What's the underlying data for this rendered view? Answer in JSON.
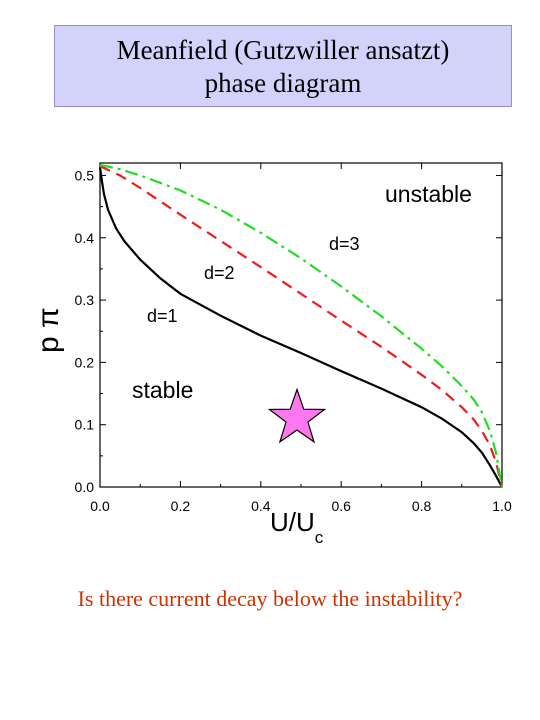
{
  "title": {
    "line1": "Meanfield (Gutzwiller ansatzt)",
    "line2": "phase diagram"
  },
  "question": "Is there current decay below the instability?",
  "chart_data": {
    "type": "line",
    "xlabel_main": "U/U",
    "xlabel_sub": "c",
    "ylabel": "p π",
    "xlim": [
      0,
      1
    ],
    "ylim": [
      0,
      0.52
    ],
    "x_ticks": [
      "0.0",
      "0.2",
      "0.4",
      "0.6",
      "0.8",
      "1.0"
    ],
    "y_ticks": [
      "0.0",
      "0.1",
      "0.2",
      "0.3",
      "0.4",
      "0.5"
    ],
    "annotations": {
      "unstable": "unstable",
      "stable": "stable",
      "d1": "d=1",
      "d2": "d=2",
      "d3": "d=3"
    },
    "series": [
      {
        "name": "d=1",
        "color": "#000000",
        "style": "solid",
        "points": [
          [
            0.0,
            0.513
          ],
          [
            0.005,
            0.49
          ],
          [
            0.01,
            0.47
          ],
          [
            0.02,
            0.445
          ],
          [
            0.04,
            0.415
          ],
          [
            0.06,
            0.395
          ],
          [
            0.1,
            0.365
          ],
          [
            0.15,
            0.335
          ],
          [
            0.2,
            0.31
          ],
          [
            0.3,
            0.275
          ],
          [
            0.4,
            0.243
          ],
          [
            0.5,
            0.215
          ],
          [
            0.6,
            0.186
          ],
          [
            0.7,
            0.158
          ],
          [
            0.8,
            0.128
          ],
          [
            0.85,
            0.11
          ],
          [
            0.9,
            0.088
          ],
          [
            0.93,
            0.07
          ],
          [
            0.95,
            0.055
          ],
          [
            0.97,
            0.035
          ],
          [
            0.985,
            0.018
          ],
          [
            1.0,
            0.0
          ]
        ]
      },
      {
        "name": "d=2",
        "color": "#ee1c1c",
        "style": "dashed",
        "points": [
          [
            0.0,
            0.515
          ],
          [
            0.05,
            0.5
          ],
          [
            0.1,
            0.48
          ],
          [
            0.2,
            0.437
          ],
          [
            0.3,
            0.395
          ],
          [
            0.4,
            0.353
          ],
          [
            0.5,
            0.31
          ],
          [
            0.6,
            0.267
          ],
          [
            0.7,
            0.225
          ],
          [
            0.8,
            0.18
          ],
          [
            0.85,
            0.156
          ],
          [
            0.9,
            0.128
          ],
          [
            0.93,
            0.108
          ],
          [
            0.95,
            0.09
          ],
          [
            0.97,
            0.067
          ],
          [
            0.985,
            0.04
          ],
          [
            1.0,
            0.0
          ]
        ]
      },
      {
        "name": "d=3",
        "color": "#22dd22",
        "style": "dashdot",
        "points": [
          [
            0.0,
            0.517
          ],
          [
            0.05,
            0.51
          ],
          [
            0.1,
            0.5
          ],
          [
            0.15,
            0.488
          ],
          [
            0.2,
            0.476
          ],
          [
            0.3,
            0.445
          ],
          [
            0.4,
            0.408
          ],
          [
            0.5,
            0.367
          ],
          [
            0.6,
            0.322
          ],
          [
            0.7,
            0.274
          ],
          [
            0.8,
            0.222
          ],
          [
            0.85,
            0.194
          ],
          [
            0.9,
            0.162
          ],
          [
            0.93,
            0.14
          ],
          [
            0.95,
            0.12
          ],
          [
            0.97,
            0.09
          ],
          [
            0.985,
            0.055
          ],
          [
            1.0,
            0.0
          ]
        ]
      }
    ],
    "marker": {
      "shape": "star",
      "color": "#ff77ee",
      "x": 0.49,
      "y": 0.11
    }
  }
}
